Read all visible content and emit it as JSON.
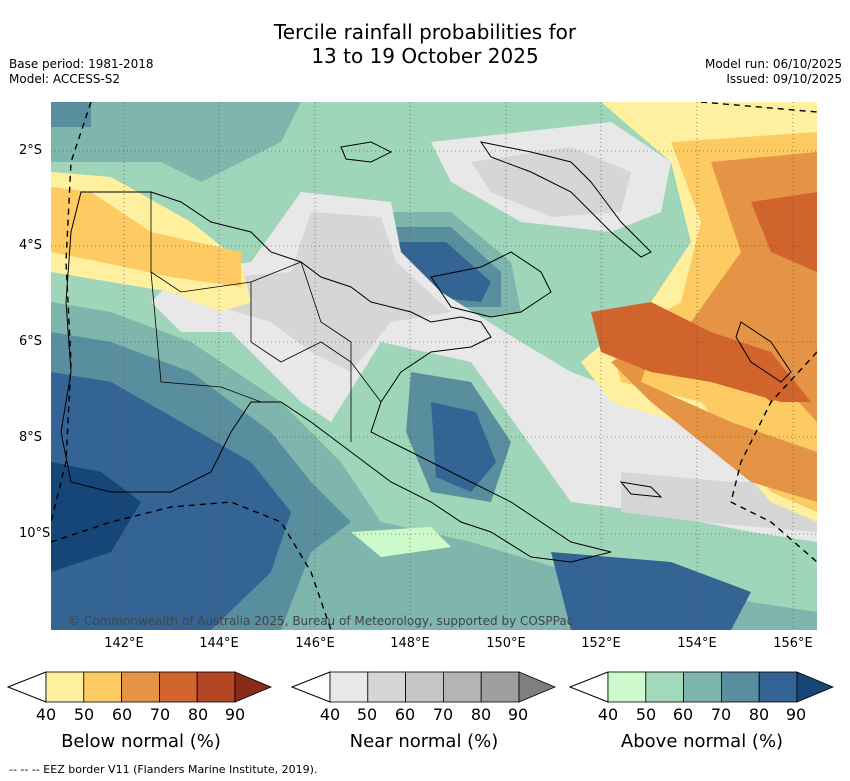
{
  "header": {
    "title_line1": "Tercile rainfall probabilities for",
    "title_line2": "13 to 19 October 2025",
    "base_period": "Base period: 1981-2018",
    "model": "Model: ACCESS-S2",
    "model_run": "Model run: 06/10/2025",
    "issued": "Issued: 09/10/2025"
  },
  "map": {
    "lat_labels": [
      "2°S",
      "4°S",
      "6°S",
      "8°S",
      "10°S"
    ],
    "lon_labels": [
      "142°E",
      "144°E",
      "146°E",
      "148°E",
      "150°E",
      "152°E",
      "154°E",
      "156°E"
    ],
    "copyright": "© Commonwealth of Australia 2025, Bureau of Meteorology, supported by COSPPac"
  },
  "colorbars": [
    {
      "title": "Below normal (%)",
      "ticks": [
        "40",
        "50",
        "60",
        "70",
        "80",
        "90"
      ],
      "colors": [
        "#fff0a0",
        "#fdcb62",
        "#e49444",
        "#d0642c",
        "#b44626",
        "#8a2a18"
      ]
    },
    {
      "title": "Near normal (%)",
      "ticks": [
        "40",
        "50",
        "60",
        "70",
        "80",
        "90"
      ],
      "colors": [
        "#e8e8e8",
        "#d6d6d6",
        "#c6c6c6",
        "#b4b4b4",
        "#9f9f9f",
        "#7f7f7f"
      ]
    },
    {
      "title": "Above normal (%)",
      "ticks": [
        "40",
        "50",
        "60",
        "70",
        "80",
        "90"
      ],
      "colors": [
        "#cdfacb",
        "#a2d8bc",
        "#7eb5ad",
        "#598e9f",
        "#336493",
        "#164578"
      ]
    }
  ],
  "footnote": "--  --  -- EEZ border V11 (Flanders Marine Institute, 2019)."
}
